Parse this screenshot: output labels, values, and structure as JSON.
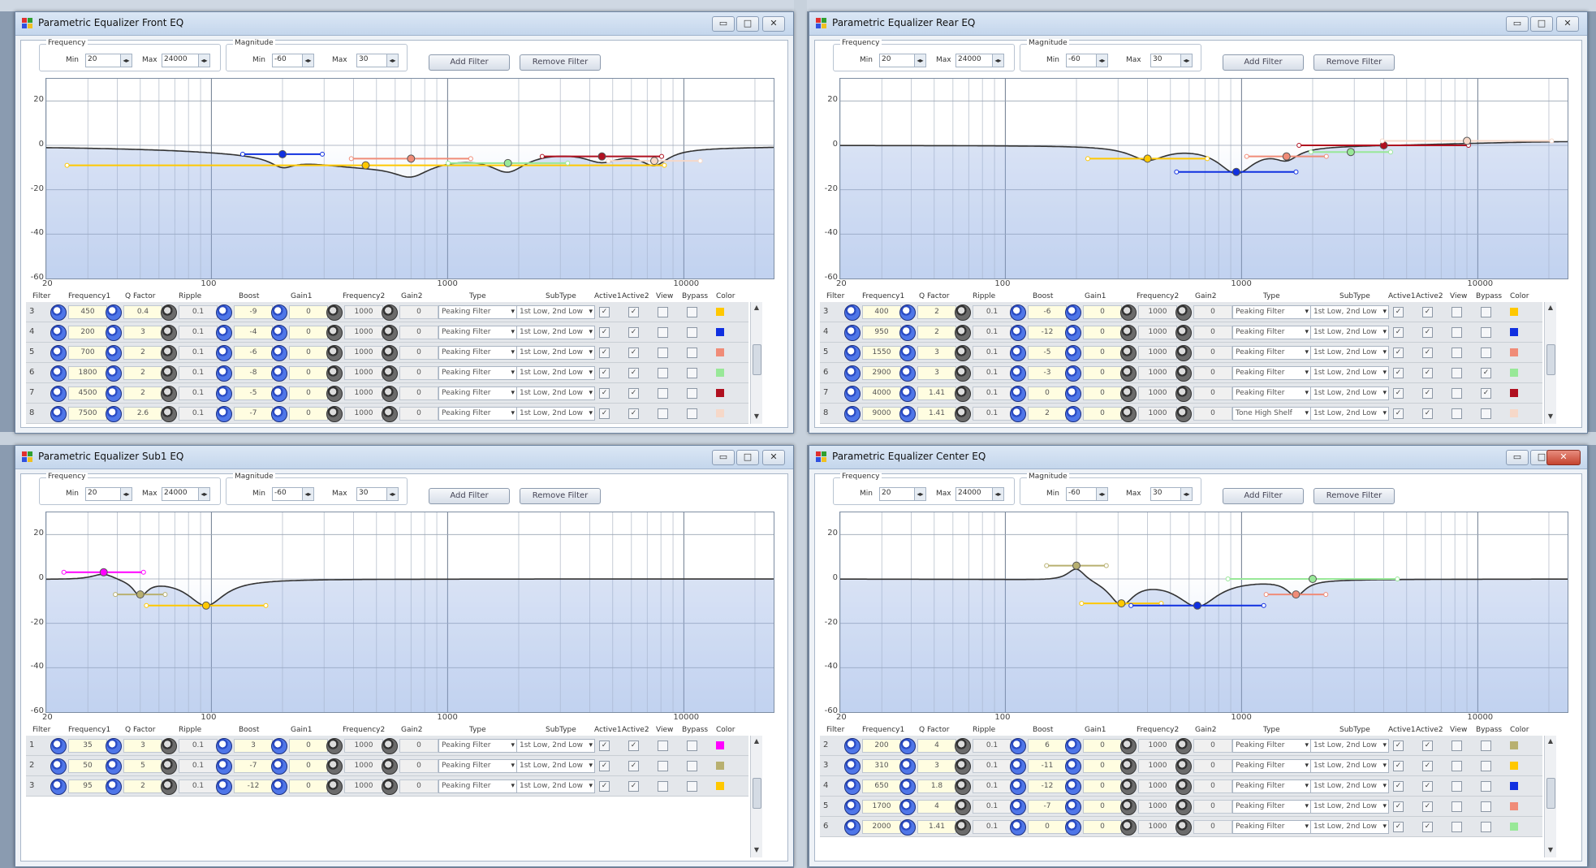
{
  "windows": [
    {
      "title": "Parametric Equalizer Front EQ",
      "rows": [
        {
          "n": "3",
          "f1": "450",
          "q": "0.4",
          "ripple": "0.1",
          "boost": "-9",
          "gain1": "0",
          "f2": "1000",
          "gain2": "0",
          "type": "Peaking Filter",
          "subtype": "1st Low, 2nd Low",
          "active1": true,
          "active2": true,
          "view": false,
          "bypass": false,
          "color": "#ffc800"
        },
        {
          "n": "4",
          "f1": "200",
          "q": "3",
          "ripple": "0.1",
          "boost": "-4",
          "gain1": "0",
          "f2": "1000",
          "gain2": "0",
          "type": "Peaking Filter",
          "subtype": "1st Low, 2nd Low",
          "active1": true,
          "active2": true,
          "view": false,
          "bypass": false,
          "color": "#1030e0"
        },
        {
          "n": "5",
          "f1": "700",
          "q": "2",
          "ripple": "0.1",
          "boost": "-6",
          "gain1": "0",
          "f2": "1000",
          "gain2": "0",
          "type": "Peaking Filter",
          "subtype": "1st Low, 2nd Low",
          "active1": true,
          "active2": true,
          "view": false,
          "bypass": false,
          "color": "#f08c78"
        },
        {
          "n": "6",
          "f1": "1800",
          "q": "2",
          "ripple": "0.1",
          "boost": "-8",
          "gain1": "0",
          "f2": "1000",
          "gain2": "0",
          "type": "Peaking Filter",
          "subtype": "1st Low, 2nd Low",
          "active1": true,
          "active2": true,
          "view": false,
          "bypass": false,
          "color": "#98e898"
        },
        {
          "n": "7",
          "f1": "4500",
          "q": "2",
          "ripple": "0.1",
          "boost": "-5",
          "gain1": "0",
          "f2": "1000",
          "gain2": "0",
          "type": "Peaking Filter",
          "subtype": "1st Low, 2nd Low",
          "active1": true,
          "active2": true,
          "view": false,
          "bypass": false,
          "color": "#b01020"
        },
        {
          "n": "8",
          "f1": "7500",
          "q": "2.6",
          "ripple": "0.1",
          "boost": "-7",
          "gain1": "0",
          "f2": "1000",
          "gain2": "0",
          "type": "Peaking Filter",
          "subtype": "1st Low, 2nd Low",
          "active1": true,
          "active2": true,
          "view": false,
          "bypass": false,
          "color": "#f6d8c8"
        }
      ]
    },
    {
      "title": "Parametric Equalizer Rear EQ",
      "rows": [
        {
          "n": "3",
          "f1": "400",
          "q": "2",
          "ripple": "0.1",
          "boost": "-6",
          "gain1": "0",
          "f2": "1000",
          "gain2": "0",
          "type": "Peaking Filter",
          "subtype": "1st Low, 2nd Low",
          "active1": true,
          "active2": true,
          "view": false,
          "bypass": false,
          "color": "#ffc800"
        },
        {
          "n": "4",
          "f1": "950",
          "q": "2",
          "ripple": "0.1",
          "boost": "-12",
          "gain1": "0",
          "f2": "1000",
          "gain2": "0",
          "type": "Peaking Filter",
          "subtype": "1st Low, 2nd Low",
          "active1": true,
          "active2": true,
          "view": false,
          "bypass": false,
          "color": "#1030e0"
        },
        {
          "n": "5",
          "f1": "1550",
          "q": "3",
          "ripple": "0.1",
          "boost": "-5",
          "gain1": "0",
          "f2": "1000",
          "gain2": "0",
          "type": "Peaking Filter",
          "subtype": "1st Low, 2nd Low",
          "active1": true,
          "active2": true,
          "view": false,
          "bypass": false,
          "color": "#f08c78"
        },
        {
          "n": "6",
          "f1": "2900",
          "q": "3",
          "ripple": "0.1",
          "boost": "-3",
          "gain1": "0",
          "f2": "1000",
          "gain2": "0",
          "type": "Peaking Filter",
          "subtype": "1st Low, 2nd Low",
          "active1": true,
          "active2": true,
          "view": false,
          "bypass": true,
          "color": "#98e898"
        },
        {
          "n": "7",
          "f1": "4000",
          "q": "1.41",
          "ripple": "0.1",
          "boost": "0",
          "gain1": "0",
          "f2": "1000",
          "gain2": "0",
          "type": "Peaking Filter",
          "subtype": "1st Low, 2nd Low",
          "active1": true,
          "active2": true,
          "view": false,
          "bypass": true,
          "color": "#b01020"
        },
        {
          "n": "8",
          "f1": "9000",
          "q": "1.41",
          "ripple": "0.1",
          "boost": "2",
          "gain1": "0",
          "f2": "1000",
          "gain2": "0",
          "type": "Tone High Shelf",
          "subtype": "1st Low, 2nd Low",
          "active1": true,
          "active2": true,
          "view": false,
          "bypass": false,
          "color": "#f6d8c8"
        }
      ]
    },
    {
      "title": "Parametric Equalizer Sub1 EQ",
      "rows": [
        {
          "n": "1",
          "f1": "35",
          "q": "3",
          "ripple": "0.1",
          "boost": "3",
          "gain1": "0",
          "f2": "1000",
          "gain2": "0",
          "type": "Peaking Filter",
          "subtype": "1st Low, 2nd Low",
          "active1": true,
          "active2": true,
          "view": false,
          "bypass": false,
          "color": "#ff00ff"
        },
        {
          "n": "2",
          "f1": "50",
          "q": "5",
          "ripple": "0.1",
          "boost": "-7",
          "gain1": "0",
          "f2": "1000",
          "gain2": "0",
          "type": "Peaking Filter",
          "subtype": "1st Low, 2nd Low",
          "active1": true,
          "active2": true,
          "view": false,
          "bypass": false,
          "color": "#b8b070"
        },
        {
          "n": "3",
          "f1": "95",
          "q": "2",
          "ripple": "0.1",
          "boost": "-12",
          "gain1": "0",
          "f2": "1000",
          "gain2": "0",
          "type": "Peaking Filter",
          "subtype": "1st Low, 2nd Low",
          "active1": true,
          "active2": true,
          "view": false,
          "bypass": false,
          "color": "#ffc800"
        }
      ]
    },
    {
      "title": "Parametric Equalizer Center EQ",
      "rows": [
        {
          "n": "2",
          "f1": "200",
          "q": "4",
          "ripple": "0.1",
          "boost": "6",
          "gain1": "0",
          "f2": "1000",
          "gain2": "0",
          "type": "Peaking Filter",
          "subtype": "1st Low, 2nd Low",
          "active1": true,
          "active2": true,
          "view": false,
          "bypass": false,
          "color": "#b8b070"
        },
        {
          "n": "3",
          "f1": "310",
          "q": "3",
          "ripple": "0.1",
          "boost": "-11",
          "gain1": "0",
          "f2": "1000",
          "gain2": "0",
          "type": "Peaking Filter",
          "subtype": "1st Low, 2nd Low",
          "active1": true,
          "active2": true,
          "view": false,
          "bypass": false,
          "color": "#ffc800"
        },
        {
          "n": "4",
          "f1": "650",
          "q": "1.8",
          "ripple": "0.1",
          "boost": "-12",
          "gain1": "0",
          "f2": "1000",
          "gain2": "0",
          "type": "Peaking Filter",
          "subtype": "1st Low, 2nd Low",
          "active1": true,
          "active2": true,
          "view": false,
          "bypass": false,
          "color": "#1030e0"
        },
        {
          "n": "5",
          "f1": "1700",
          "q": "4",
          "ripple": "0.1",
          "boost": "-7",
          "gain1": "0",
          "f2": "1000",
          "gain2": "0",
          "type": "Peaking Filter",
          "subtype": "1st Low, 2nd Low",
          "active1": true,
          "active2": true,
          "view": false,
          "bypass": false,
          "color": "#f08c78"
        },
        {
          "n": "6",
          "f1": "2000",
          "q": "1.41",
          "ripple": "0.1",
          "boost": "0",
          "gain1": "0",
          "f2": "1000",
          "gain2": "0",
          "type": "Peaking Filter",
          "subtype": "1st Low, 2nd Low",
          "active1": true,
          "active2": true,
          "view": false,
          "bypass": false,
          "color": "#98e898"
        }
      ]
    }
  ],
  "controls": {
    "frequency_label": "Frequency",
    "magnitude_label": "Magnitude",
    "min_label": "Min",
    "max_label": "Max",
    "freq_min": "20",
    "freq_max": "24000",
    "mag_min": "-60",
    "mag_max": "30",
    "add_filter": "Add Filter",
    "remove_filter": "Remove Filter"
  },
  "axis": {
    "y_ticks": [
      "20",
      "0",
      "-20",
      "-40",
      "-60"
    ],
    "x_ticks": [
      "20",
      "100",
      "1000",
      "10000"
    ]
  },
  "table_headers": [
    "Filter",
    "Frequency1",
    "Q Factor",
    "Ripple",
    "Boost",
    "Gain1",
    "Frequency2",
    "Gain2",
    "Type",
    "SubType",
    "Active1",
    "Active2",
    "View",
    "Bypass",
    "Color"
  ],
  "window_buttons": {
    "minimize": "▭",
    "maximize": "□",
    "close": "✕"
  }
}
